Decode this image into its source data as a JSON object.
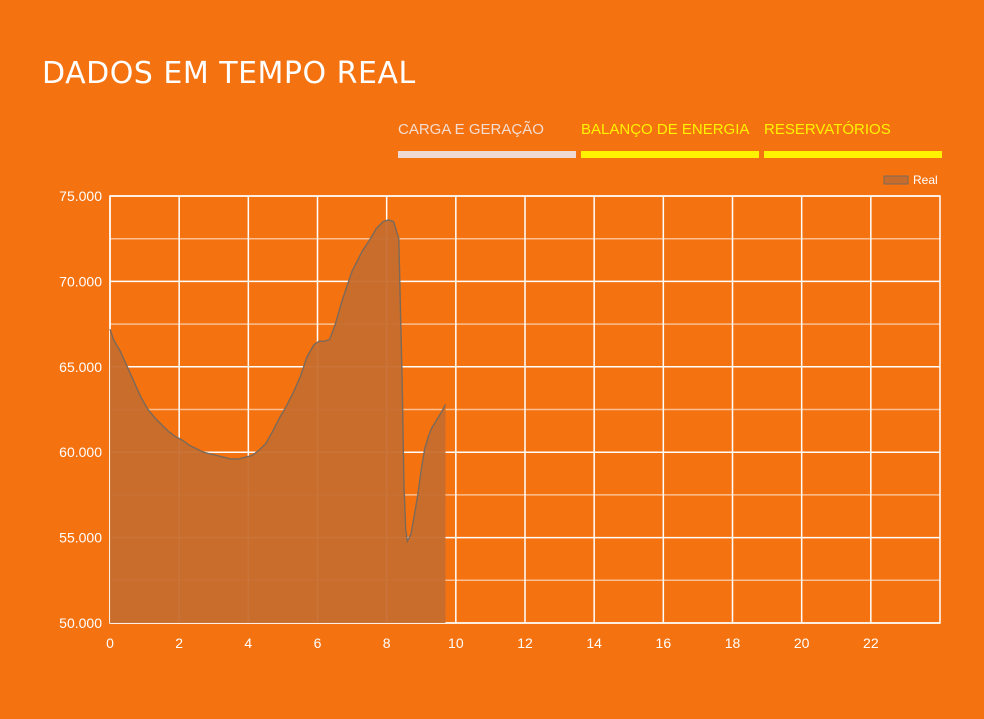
{
  "header": {
    "title": "DADOS EM TEMPO REAL"
  },
  "tabs": [
    {
      "label": "CARGA E GERAÇÃO",
      "text_color": "#f3dcd0",
      "bar_color": "#eedad2",
      "active": true
    },
    {
      "label": "BALANÇO DE ENERGIA",
      "text_color": "#fff200",
      "bar_color": "#fff200",
      "active": false
    },
    {
      "label": "RESERVATÓRIOS",
      "text_color": "#fff200",
      "bar_color": "#fff200",
      "active": false
    }
  ],
  "colors": {
    "background": "#f47210",
    "grid": "#ffffff",
    "area_fill": "#c66d2e",
    "line": "#7b6a5a"
  },
  "chart_data": {
    "type": "area",
    "title": "",
    "xlabel": "",
    "ylabel": "",
    "xlim": [
      0,
      24
    ],
    "ylim": [
      50000,
      75000
    ],
    "x_ticks": [
      0,
      2,
      4,
      6,
      8,
      10,
      12,
      14,
      16,
      18,
      20,
      22
    ],
    "x_tick_labels": [
      "0",
      "2",
      "4",
      "6",
      "8",
      "10",
      "12",
      "14",
      "16",
      "18",
      "20",
      "22"
    ],
    "y_ticks": [
      50000,
      55000,
      60000,
      65000,
      70000,
      75000
    ],
    "y_tick_labels": [
      "50.000",
      "55.000",
      "60.000",
      "65.000",
      "70.000",
      "75.000"
    ],
    "grid": true,
    "legend_position": "top-right",
    "series": [
      {
        "name": "Real",
        "x": [
          0,
          0.1,
          0.3,
          0.5,
          0.7,
          0.9,
          1.1,
          1.3,
          1.5,
          1.7,
          1.9,
          2.1,
          2.3,
          2.5,
          2.7,
          2.9,
          3.1,
          3.3,
          3.5,
          3.7,
          3.9,
          4.1,
          4.3,
          4.5,
          4.7,
          4.9,
          5.1,
          5.3,
          5.5,
          5.7,
          5.9,
          6.05,
          6.2,
          6.35,
          6.5,
          6.7,
          6.9,
          7.0,
          7.15,
          7.3,
          7.5,
          7.7,
          7.9,
          8.05,
          8.2,
          8.35,
          8.45,
          8.5,
          8.55,
          8.6,
          8.7,
          8.8,
          8.9,
          9.0,
          9.1,
          9.2,
          9.3,
          9.45,
          9.6,
          9.7
        ],
        "y": [
          67200,
          66600,
          65900,
          65000,
          64100,
          63200,
          62500,
          62000,
          61600,
          61200,
          60900,
          60700,
          60400,
          60200,
          60000,
          59900,
          59800,
          59700,
          59600,
          59600,
          59700,
          59800,
          60100,
          60500,
          61200,
          62000,
          62700,
          63500,
          64400,
          65600,
          66300,
          66500,
          66500,
          66600,
          67400,
          68800,
          70000,
          70600,
          71200,
          71800,
          72400,
          73100,
          73500,
          73600,
          73500,
          72500,
          64000,
          58000,
          55500,
          54800,
          55200,
          56300,
          57500,
          59000,
          60200,
          60900,
          61400,
          61900,
          62400,
          62800
        ]
      }
    ]
  }
}
